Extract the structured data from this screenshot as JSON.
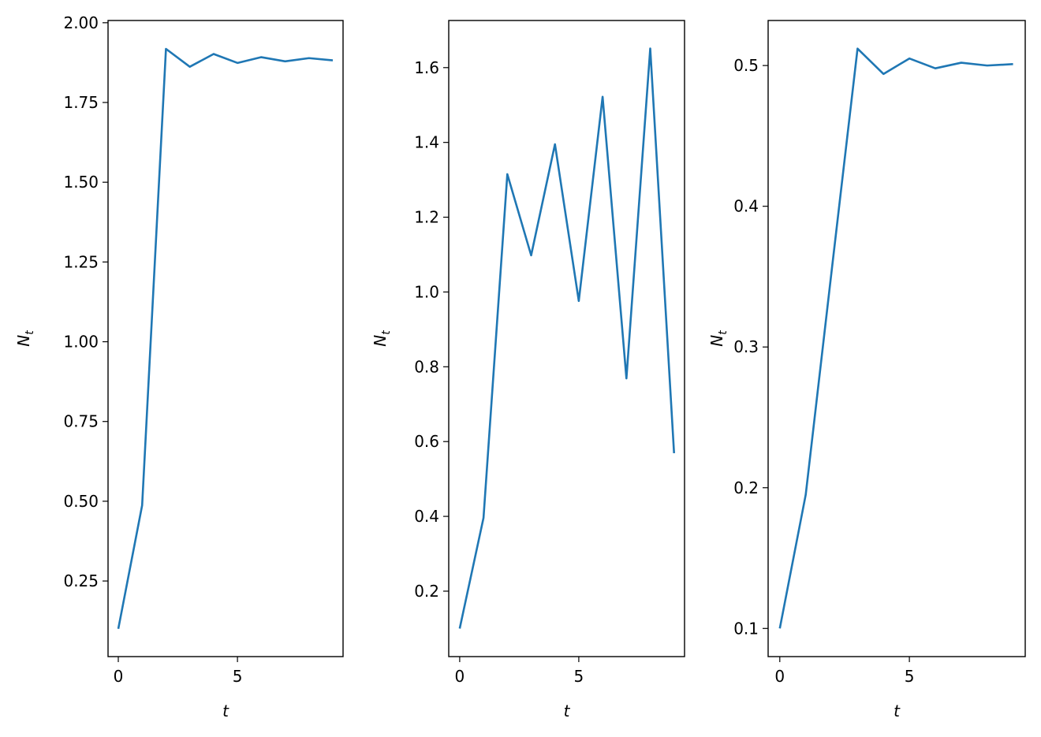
{
  "chart_data": [
    {
      "type": "line",
      "xlabel": "t",
      "ylabel": "N",
      "ylabel_subscript": "t",
      "x": [
        0,
        1,
        2,
        3,
        4,
        5,
        6,
        7,
        8,
        9
      ],
      "values": [
        0.1,
        0.487,
        1.918,
        1.862,
        1.902,
        1.874,
        1.892,
        1.879,
        1.889,
        1.882
      ],
      "color": "#1f77b4",
      "xlim": [
        -0.43,
        9.43
      ],
      "xticks": [
        0,
        5
      ],
      "ylim": [
        0.013,
        2.007
      ],
      "yticks": [
        0.25,
        {
          "value": 0.5,
          "label": "0.50"
        },
        0.75,
        {
          "value": 1.0,
          "label": "1.00"
        },
        1.25,
        {
          "value": 1.5,
          "label": "1.50"
        },
        1.75,
        {
          "value": 2.0,
          "label": "2.00"
        }
      ]
    },
    {
      "type": "line",
      "xlabel": "t",
      "ylabel": "N",
      "ylabel_subscript": "t",
      "x": [
        0,
        1,
        2,
        3,
        4,
        5,
        6,
        7,
        8,
        9
      ],
      "values": [
        0.1,
        0.396,
        1.315,
        1.098,
        1.395,
        0.976,
        1.522,
        0.769,
        1.651,
        0.569
      ],
      "color": "#1f77b4",
      "xlim": [
        -0.46,
        9.44
      ],
      "xticks": [
        0,
        5
      ],
      "ylim": [
        0.025,
        1.726
      ],
      "yticks": [
        0.2,
        0.4,
        0.6,
        0.8,
        {
          "value": 1.0,
          "label": "1.0"
        },
        1.2,
        1.4,
        1.6
      ]
    },
    {
      "type": "line",
      "xlabel": "t",
      "ylabel": "N",
      "ylabel_subscript": "t",
      "x": [
        0,
        1,
        2,
        3,
        4,
        5,
        6,
        7,
        8,
        9
      ],
      "values": [
        0.1,
        0.195,
        0.354,
        0.512,
        0.494,
        0.505,
        0.498,
        0.502,
        0.5,
        0.501
      ],
      "color": "#1f77b4",
      "xlim": [
        -0.45,
        9.47
      ],
      "xticks": [
        0,
        5
      ],
      "ylim": [
        0.08,
        0.532
      ],
      "yticks": [
        0.1,
        0.2,
        0.3,
        0.4,
        0.5
      ]
    }
  ]
}
